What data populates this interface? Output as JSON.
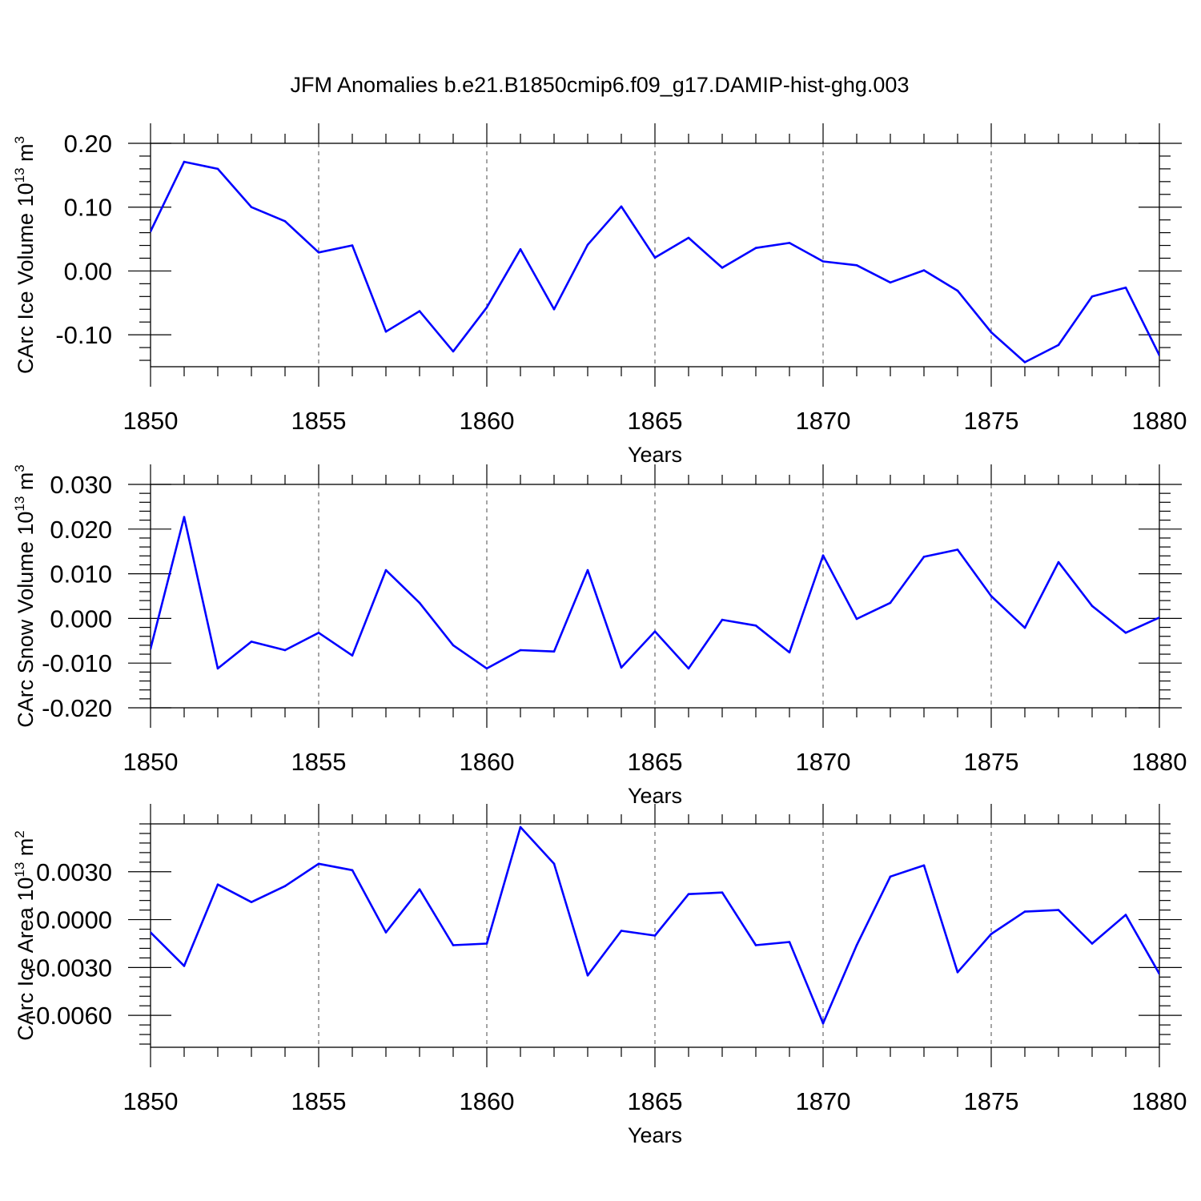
{
  "figure": {
    "title": "JFM Anomalies b.e21.B1850cmip6.f09_g17.DAMIP-hist-ghg.003",
    "line_color": "#0000ff"
  },
  "chart_data": [
    {
      "type": "line",
      "xlabel": "Years",
      "ylabel": "CArc Ice Volume 10",
      "ylabel_exponent": "13",
      "ylabel_unit": " m",
      "ylabel_unit_exponent": "3",
      "xlim": [
        1850,
        1880
      ],
      "ylim": [
        -0.15,
        0.2
      ],
      "x_ticks": [
        1850,
        1855,
        1860,
        1865,
        1870,
        1875,
        1880
      ],
      "x_tick_labels": [
        "1850",
        "1855",
        "1860",
        "1865",
        "1870",
        "1875",
        "1880"
      ],
      "y_ticks": [
        -0.1,
        0.0,
        0.1,
        0.2
      ],
      "y_tick_labels": [
        "-0.10",
        "0.00",
        "0.10",
        "0.20"
      ],
      "grid": "vertical dashed at major x ticks",
      "x": [
        1850,
        1851,
        1852,
        1853,
        1854,
        1855,
        1856,
        1857,
        1858,
        1859,
        1860,
        1861,
        1862,
        1863,
        1864,
        1865,
        1866,
        1867,
        1868,
        1869,
        1870,
        1871,
        1872,
        1873,
        1874,
        1875,
        1876,
        1877,
        1878,
        1879,
        1880
      ],
      "series": [
        {
          "values": [
            0.062,
            0.171,
            0.16,
            0.1,
            0.078,
            0.029,
            0.04,
            -0.095,
            -0.063,
            -0.126,
            -0.057,
            0.034,
            -0.06,
            0.041,
            0.101,
            0.021,
            0.052,
            0.005,
            0.036,
            0.044,
            0.015,
            0.009,
            -0.018,
            0.001,
            -0.031,
            -0.096,
            -0.143,
            -0.116,
            -0.04,
            -0.026,
            -0.132
          ]
        }
      ]
    },
    {
      "type": "line",
      "xlabel": "Years",
      "ylabel": "CArc Snow Volume 10",
      "ylabel_exponent": "13",
      "ylabel_unit": " m",
      "ylabel_unit_exponent": "3",
      "xlim": [
        1850,
        1880
      ],
      "ylim": [
        -0.02,
        0.03
      ],
      "x_ticks": [
        1850,
        1855,
        1860,
        1865,
        1870,
        1875,
        1880
      ],
      "x_tick_labels": [
        "1850",
        "1855",
        "1860",
        "1865",
        "1870",
        "1875",
        "1880"
      ],
      "y_ticks": [
        -0.02,
        -0.01,
        0.0,
        0.01,
        0.02,
        0.03
      ],
      "y_tick_labels": [
        "-0.020",
        "-0.010",
        "0.000",
        "0.010",
        "0.020",
        "0.030"
      ],
      "grid": "vertical dashed at major x ticks",
      "x": [
        1850,
        1851,
        1852,
        1853,
        1854,
        1855,
        1856,
        1857,
        1858,
        1859,
        1860,
        1861,
        1862,
        1863,
        1864,
        1865,
        1866,
        1867,
        1868,
        1869,
        1870,
        1871,
        1872,
        1873,
        1874,
        1875,
        1876,
        1877,
        1878,
        1879,
        1880
      ],
      "series": [
        {
          "values": [
            -0.0068,
            0.0227,
            -0.0112,
            -0.0052,
            -0.0071,
            -0.0032,
            -0.0083,
            0.0108,
            0.0035,
            -0.006,
            -0.0112,
            -0.0071,
            -0.0074,
            0.0108,
            -0.011,
            -0.0029,
            -0.0112,
            -0.0003,
            -0.0016,
            -0.0076,
            0.0141,
            -0.0001,
            0.0035,
            0.0138,
            0.0154,
            0.005,
            -0.0021,
            0.0126,
            0.0028,
            -0.0032,
            0.0002
          ]
        }
      ]
    },
    {
      "type": "line",
      "xlabel": "Years",
      "ylabel": "CArc Ice Area 10",
      "ylabel_exponent": "13",
      "ylabel_unit": " m",
      "ylabel_unit_exponent": "2",
      "xlim": [
        1850,
        1880
      ],
      "ylim": [
        -0.008,
        0.006
      ],
      "x_ticks": [
        1850,
        1855,
        1860,
        1865,
        1870,
        1875,
        1880
      ],
      "x_tick_labels": [
        "1850",
        "1855",
        "1860",
        "1865",
        "1870",
        "1875",
        "1880"
      ],
      "y_ticks": [
        -0.006,
        -0.003,
        0.0,
        0.003
      ],
      "y_tick_labels": [
        "-0.0060",
        "-0.0030",
        "0.0000",
        "0.0030"
      ],
      "grid": "vertical dashed at major x ticks",
      "x": [
        1850,
        1851,
        1852,
        1853,
        1854,
        1855,
        1856,
        1857,
        1858,
        1859,
        1860,
        1861,
        1862,
        1863,
        1864,
        1865,
        1866,
        1867,
        1868,
        1869,
        1870,
        1871,
        1872,
        1873,
        1874,
        1875,
        1876,
        1877,
        1878,
        1879,
        1880
      ],
      "series": [
        {
          "values": [
            -0.0008,
            -0.0029,
            0.0022,
            0.0011,
            0.0021,
            0.0035,
            0.0031,
            -0.0008,
            0.0019,
            -0.0016,
            -0.0015,
            0.0058,
            0.0035,
            -0.0035,
            -0.0007,
            -0.001,
            0.0016,
            0.0017,
            -0.0016,
            -0.0014,
            -0.0065,
            -0.0016,
            0.0027,
            0.0034,
            -0.0033,
            -0.0009,
            0.0005,
            0.0006,
            -0.0015,
            0.0003,
            -0.0034
          ]
        }
      ]
    }
  ]
}
